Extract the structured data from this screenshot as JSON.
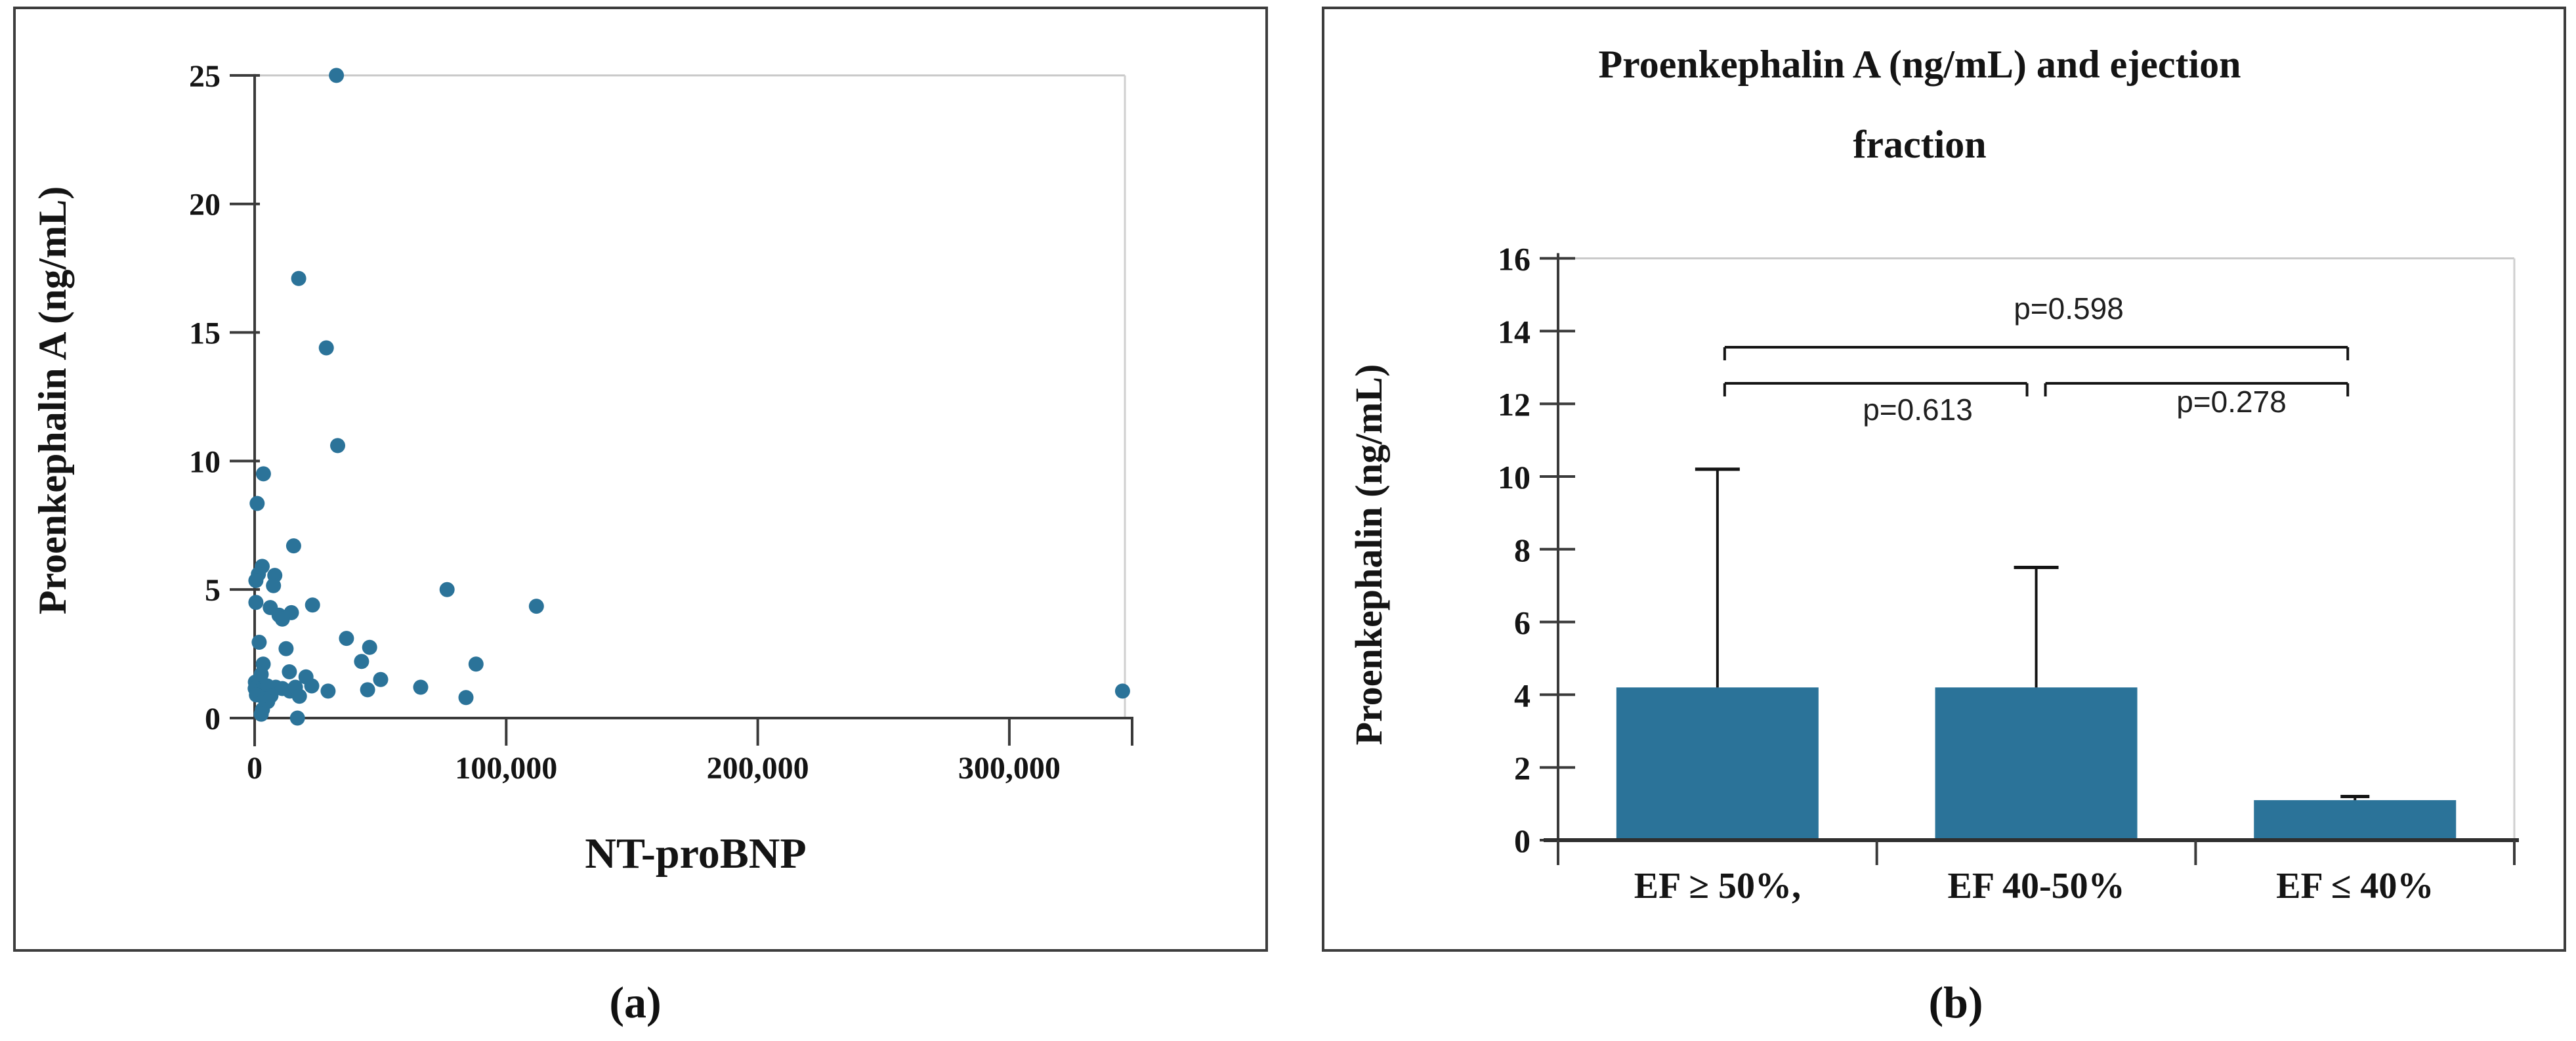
{
  "figure": {
    "caption_a": "(a)",
    "caption_b": "(b)",
    "point_color": "#2b7399",
    "bar_color": "#2b7399",
    "axis_color": "#3a3a3a",
    "strong_axis_color": "#2f2f2f",
    "grid_color": "#c9c9c9",
    "faint_border_color": "#d0d0d0",
    "panel_border_color": "#3d3d3d",
    "text_color": "#141414",
    "error_bar_color": "#141414"
  },
  "chart_data": [
    {
      "type": "scatter",
      "title": "",
      "xlabel": "NT-proBNP",
      "ylabel": "Proenkephalin A (ng/mL)",
      "xlim": [
        0,
        348000
      ],
      "ylim": [
        0,
        25
      ],
      "grid": "top-line-only",
      "legend": "none",
      "x_ticks": [
        0,
        100000,
        200000,
        300000
      ],
      "x_tick_labels": [
        "0",
        "100,000",
        "200,000",
        "300,000"
      ],
      "y_ticks": [
        0,
        5,
        10,
        15,
        20,
        25
      ],
      "y_tick_labels": [
        "0",
        "5",
        "10",
        "15",
        "20",
        "25"
      ],
      "points": [
        [
          32500,
          25.0
        ],
        [
          17500,
          17.1
        ],
        [
          28500,
          14.4
        ],
        [
          33000,
          10.6
        ],
        [
          3500,
          9.5
        ],
        [
          1000,
          8.35
        ],
        [
          15500,
          6.7
        ],
        [
          3000,
          5.9
        ],
        [
          1500,
          5.6
        ],
        [
          8000,
          5.55
        ],
        [
          7500,
          5.15
        ],
        [
          500,
          5.35
        ],
        [
          76500,
          5.0
        ],
        [
          112000,
          4.35
        ],
        [
          500,
          4.5
        ],
        [
          6200,
          4.3
        ],
        [
          23000,
          4.4
        ],
        [
          9700,
          4.0
        ],
        [
          14600,
          4.1
        ],
        [
          11000,
          3.85
        ],
        [
          1800,
          2.95
        ],
        [
          12500,
          2.7
        ],
        [
          36500,
          3.1
        ],
        [
          45700,
          2.75
        ],
        [
          42500,
          2.2
        ],
        [
          3400,
          2.1
        ],
        [
          88000,
          2.1
        ],
        [
          13800,
          1.8
        ],
        [
          20400,
          1.6
        ],
        [
          50100,
          1.5
        ],
        [
          300,
          1.4
        ],
        [
          2600,
          1.7
        ],
        [
          200,
          1.15
        ],
        [
          2000,
          1.05
        ],
        [
          5000,
          1.25
        ],
        [
          8400,
          1.2
        ],
        [
          11000,
          1.15
        ],
        [
          14000,
          1.05
        ],
        [
          16200,
          1.2
        ],
        [
          22700,
          1.25
        ],
        [
          29200,
          1.05
        ],
        [
          44900,
          1.1
        ],
        [
          66000,
          1.2
        ],
        [
          84000,
          0.8
        ],
        [
          17800,
          0.85
        ],
        [
          6500,
          0.87
        ],
        [
          700,
          0.9
        ],
        [
          4000,
          0.75
        ],
        [
          5200,
          0.64
        ],
        [
          3100,
          0.33
        ],
        [
          2600,
          0.15
        ],
        [
          17000,
          0.0
        ],
        [
          345000,
          1.05
        ]
      ]
    },
    {
      "type": "bar",
      "title": "Proenkephalin A (ng/mL) and ejection fraction",
      "title_lines": [
        "Proenkephalin A (ng/mL) and ejection",
        "fraction"
      ],
      "xlabel": "",
      "ylabel": "Proenkephalin (ng/mL)",
      "ylim": [
        0,
        16
      ],
      "grid": "top-line-only",
      "legend": "none",
      "y_ticks": [
        0,
        2,
        4,
        6,
        8,
        10,
        12,
        14,
        16
      ],
      "y_tick_labels": [
        "0",
        "2",
        "4",
        "6",
        "8",
        "10",
        "12",
        "14",
        "16"
      ],
      "categories": [
        "EF ≥ 50%,",
        "EF 40-50%",
        "EF ≤ 40%"
      ],
      "values": [
        4.2,
        4.2,
        1.1
      ],
      "error_high": [
        10.2,
        7.5,
        1.2
      ],
      "annotations": [
        {
          "label": "p=0.598",
          "from_category": "EF ≥ 50%,",
          "to_category": "EF ≤ 40%"
        },
        {
          "label": "p=0.613",
          "from_category": "EF ≥ 50%,",
          "to_category": "EF 40-50%"
        },
        {
          "label": "p=0.278",
          "from_category": "EF 40-50%",
          "to_category": "EF ≤ 40%"
        }
      ]
    }
  ]
}
